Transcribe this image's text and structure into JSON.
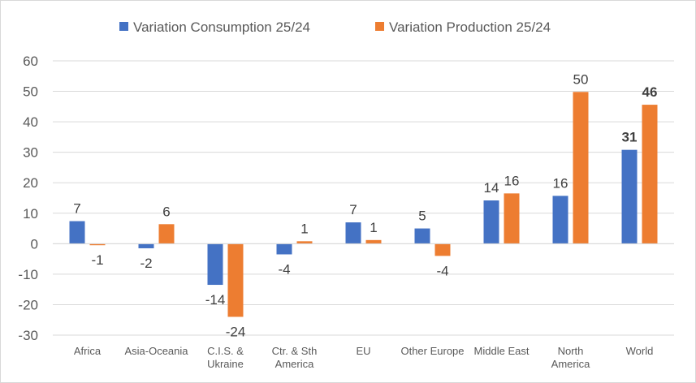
{
  "chart_data": {
    "type": "bar",
    "categories": [
      [
        "Africa"
      ],
      [
        "Asia-Oceania"
      ],
      [
        "C.I.S. &",
        "Ukraine"
      ],
      [
        "Ctr. & Sth",
        "America"
      ],
      [
        "EU"
      ],
      [
        "Other Europe"
      ],
      [
        "Middle East"
      ],
      [
        "North",
        "America"
      ],
      [
        "World"
      ]
    ],
    "series": [
      {
        "name": "Variation Consumption 25/24",
        "color": "#4472c4",
        "values": [
          7.4,
          -1.5,
          -13.5,
          -3.5,
          7.0,
          5.0,
          14.2,
          15.7,
          30.8
        ],
        "labels": [
          "7",
          "-2",
          "-14",
          "-4",
          "7",
          "5",
          "14",
          "16",
          "31"
        ]
      },
      {
        "name": "Variation Production 25/24",
        "color": "#ed7d31",
        "values": [
          -0.5,
          6.4,
          -24.0,
          0.8,
          1.2,
          -4.0,
          16.5,
          49.8,
          45.6
        ],
        "labels": [
          "-1",
          "6",
          "-24",
          "1",
          "1",
          "-4",
          "16",
          "50",
          "46"
        ]
      }
    ],
    "bold_labels_category": "World",
    "ylim": [
      -30,
      60
    ],
    "yticks": [
      "-30",
      "-20",
      "-10",
      "0",
      "10",
      "20",
      "30",
      "40",
      "50",
      "60"
    ],
    "grid": true,
    "legend": "top-center"
  }
}
